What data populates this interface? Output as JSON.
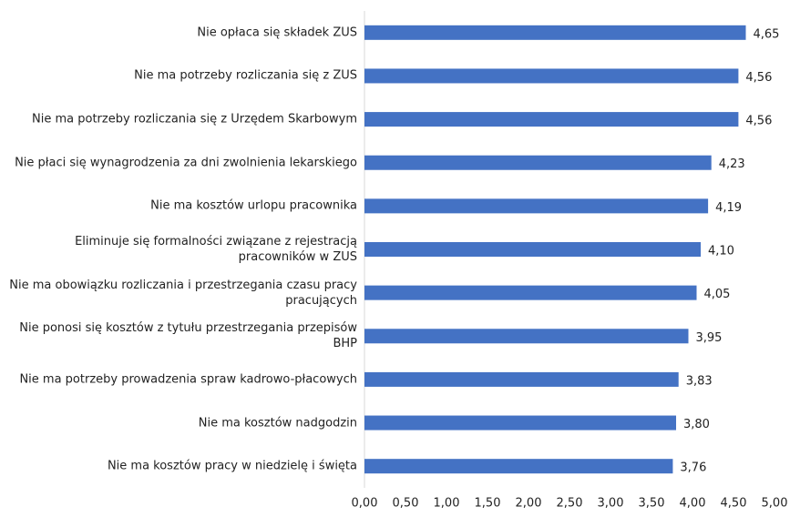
{
  "chart_data": {
    "type": "barh",
    "categories": [
      "Nie opłaca się składek ZUS",
      "Nie ma potrzeby rozliczania się z ZUS",
      "Nie ma potrzeby rozliczania się z Urzędem Skarbowym",
      "Nie płaci się wynagrodzenia za dni zwolnienia lekarskiego",
      "Nie ma kosztów urlopu pracownika",
      "Eliminuje się formalności związane z rejestracją pracowników w ZUS",
      "Nie ma obowiązku rozliczania i przestrzegania czasu pracy pracujących",
      "Nie ponosi się kosztów z tytułu przestrzegania przepisów BHP",
      "Nie ma potrzeby prowadzenia spraw kadrowo-płacowych",
      "Nie ma kosztów nadgodzin",
      "Nie ma kosztów pracy w niedzielę i święta"
    ],
    "values": [
      4.65,
      4.56,
      4.56,
      4.23,
      4.19,
      4.1,
      4.05,
      3.95,
      3.83,
      3.8,
      3.76
    ],
    "value_labels": [
      "4,65",
      "4,56",
      "4,56",
      "4,23",
      "4,19",
      "4,10",
      "4,05",
      "3,95",
      "3,83",
      "3,80",
      "3,76"
    ],
    "color": "#4472c4",
    "xlim": [
      0,
      5
    ],
    "xticks": [
      {
        "value": 0,
        "label": "0,00"
      },
      {
        "value": 0.5,
        "label": "0,50"
      },
      {
        "value": 1,
        "label": "1,00"
      },
      {
        "value": 1.5,
        "label": "1,50"
      },
      {
        "value": 2,
        "label": "2,00"
      },
      {
        "value": 2.5,
        "label": "2,50"
      },
      {
        "value": 3,
        "label": "3,00"
      },
      {
        "value": 3.5,
        "label": "3,50"
      },
      {
        "value": 4,
        "label": "4,00"
      },
      {
        "value": 4.5,
        "label": "4,50"
      },
      {
        "value": 5,
        "label": "5,00"
      }
    ],
    "grid": false
  }
}
